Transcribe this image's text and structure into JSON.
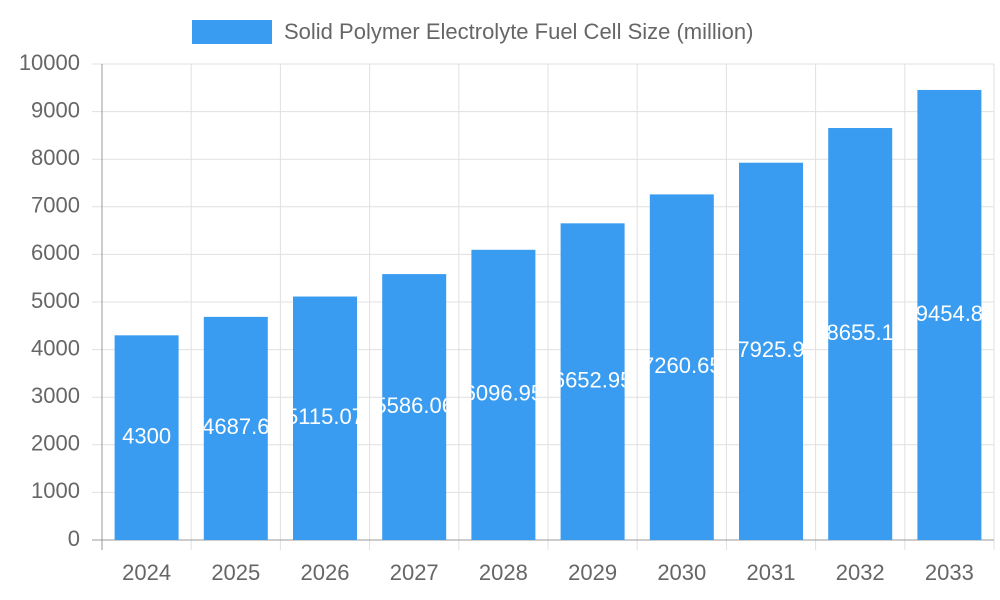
{
  "chart_data": {
    "type": "bar",
    "categories": [
      "2024",
      "2025",
      "2026",
      "2027",
      "2028",
      "2029",
      "2030",
      "2031",
      "2032",
      "2033"
    ],
    "series": [
      {
        "name": "Solid Polymer Electrolyte Fuel Cell Size (million)",
        "color": "#399cf0",
        "values": [
          4300,
          4687.6,
          5115.07,
          5586.06,
          6096.95,
          6652.95,
          7260.65,
          7925.9,
          8655.1,
          9454.8
        ]
      }
    ],
    "ylim": [
      0,
      10000
    ],
    "yticks": [
      0,
      1000,
      2000,
      3000,
      4000,
      5000,
      6000,
      7000,
      8000,
      9000,
      10000
    ],
    "grid": true,
    "legend": "top"
  }
}
